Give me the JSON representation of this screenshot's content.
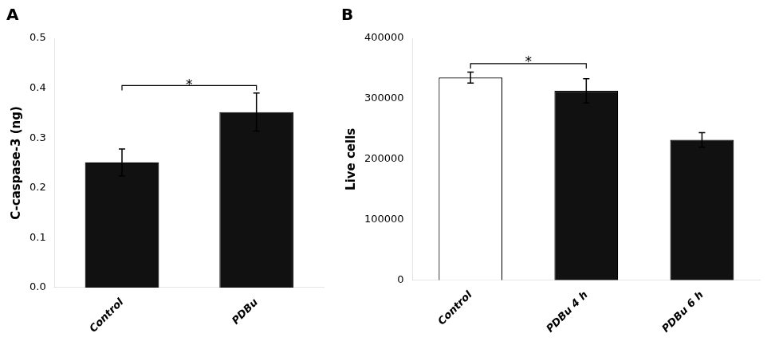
{
  "chart_data": [
    {
      "type": "bar",
      "title": "A",
      "categories": [
        "Control",
        "PDBu"
      ],
      "values": [
        0.251,
        0.352
      ],
      "errors": [
        0.027,
        0.038
      ],
      "colors": [
        "#111111",
        "#111111"
      ],
      "ylabel": "C-caspase-3 (ng)",
      "ylim": [
        0,
        0.5
      ],
      "yticks": [
        {
          "value": 0,
          "label": "0.0"
        },
        0.1,
        0.2,
        0.3,
        0.4,
        0.5
      ],
      "grid": false,
      "annotations": [
        {
          "text": "*",
          "x0": "Control",
          "x1": "PDBu",
          "y": 0.405,
          "text_y": 0.408
        }
      ]
    },
    {
      "type": "bar",
      "title": "B",
      "categories": [
        "Control",
        "PDBu 4 h",
        "PDBu 6 h"
      ],
      "values": [
        335000,
        313000,
        232000
      ],
      "errors": [
        9000,
        20000,
        12000
      ],
      "colors": [
        "#ffffff",
        "#111111",
        "#111111"
      ],
      "ylabel": "Live cells",
      "ylim": [
        0,
        400000
      ],
      "yticks": [
        0,
        100000,
        200000,
        300000,
        400000
      ],
      "grid": false,
      "annotations": [
        {
          "text": "*",
          "x0": "Control",
          "x1": "PDBu 4 h",
          "y": 358000,
          "text_y": 362000
        }
      ]
    }
  ]
}
